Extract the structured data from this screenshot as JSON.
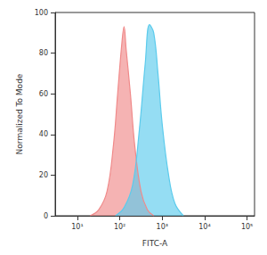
{
  "chart_data": {
    "type": "area",
    "xlabel": "FITC-A",
    "ylabel": "Normalized To Mode",
    "log": "x",
    "grid": false,
    "xlim": [
      3,
      150000
    ],
    "xticks": [
      {
        "value": 10,
        "label": "10¹"
      },
      {
        "value": 100,
        "label": "10²"
      },
      {
        "value": 1000,
        "label": "10³"
      },
      {
        "value": 10000,
        "label": "10⁴"
      },
      {
        "value": 100000,
        "label": "10⁵"
      }
    ],
    "ylim": [
      0,
      100
    ],
    "yticks": [
      0,
      20,
      40,
      60,
      80,
      100
    ],
    "series": [
      {
        "color": "#f08a8a",
        "x": [
          20,
          32,
          50,
          71,
          89,
          112,
          126,
          141,
          178,
          224,
          316,
          447,
          631
        ],
        "values": [
          0,
          3,
          12,
          35,
          60,
          85,
          93,
          82,
          60,
          35,
          12,
          3,
          0
        ]
      },
      {
        "color": "#5ccbec",
        "x": [
          79,
          126,
          200,
          282,
          398,
          501,
          631,
          794,
          1000,
          1413,
          1995,
          3162
        ],
        "values": [
          0,
          4,
          15,
          40,
          75,
          94,
          90,
          70,
          45,
          20,
          6,
          0
        ]
      }
    ]
  }
}
